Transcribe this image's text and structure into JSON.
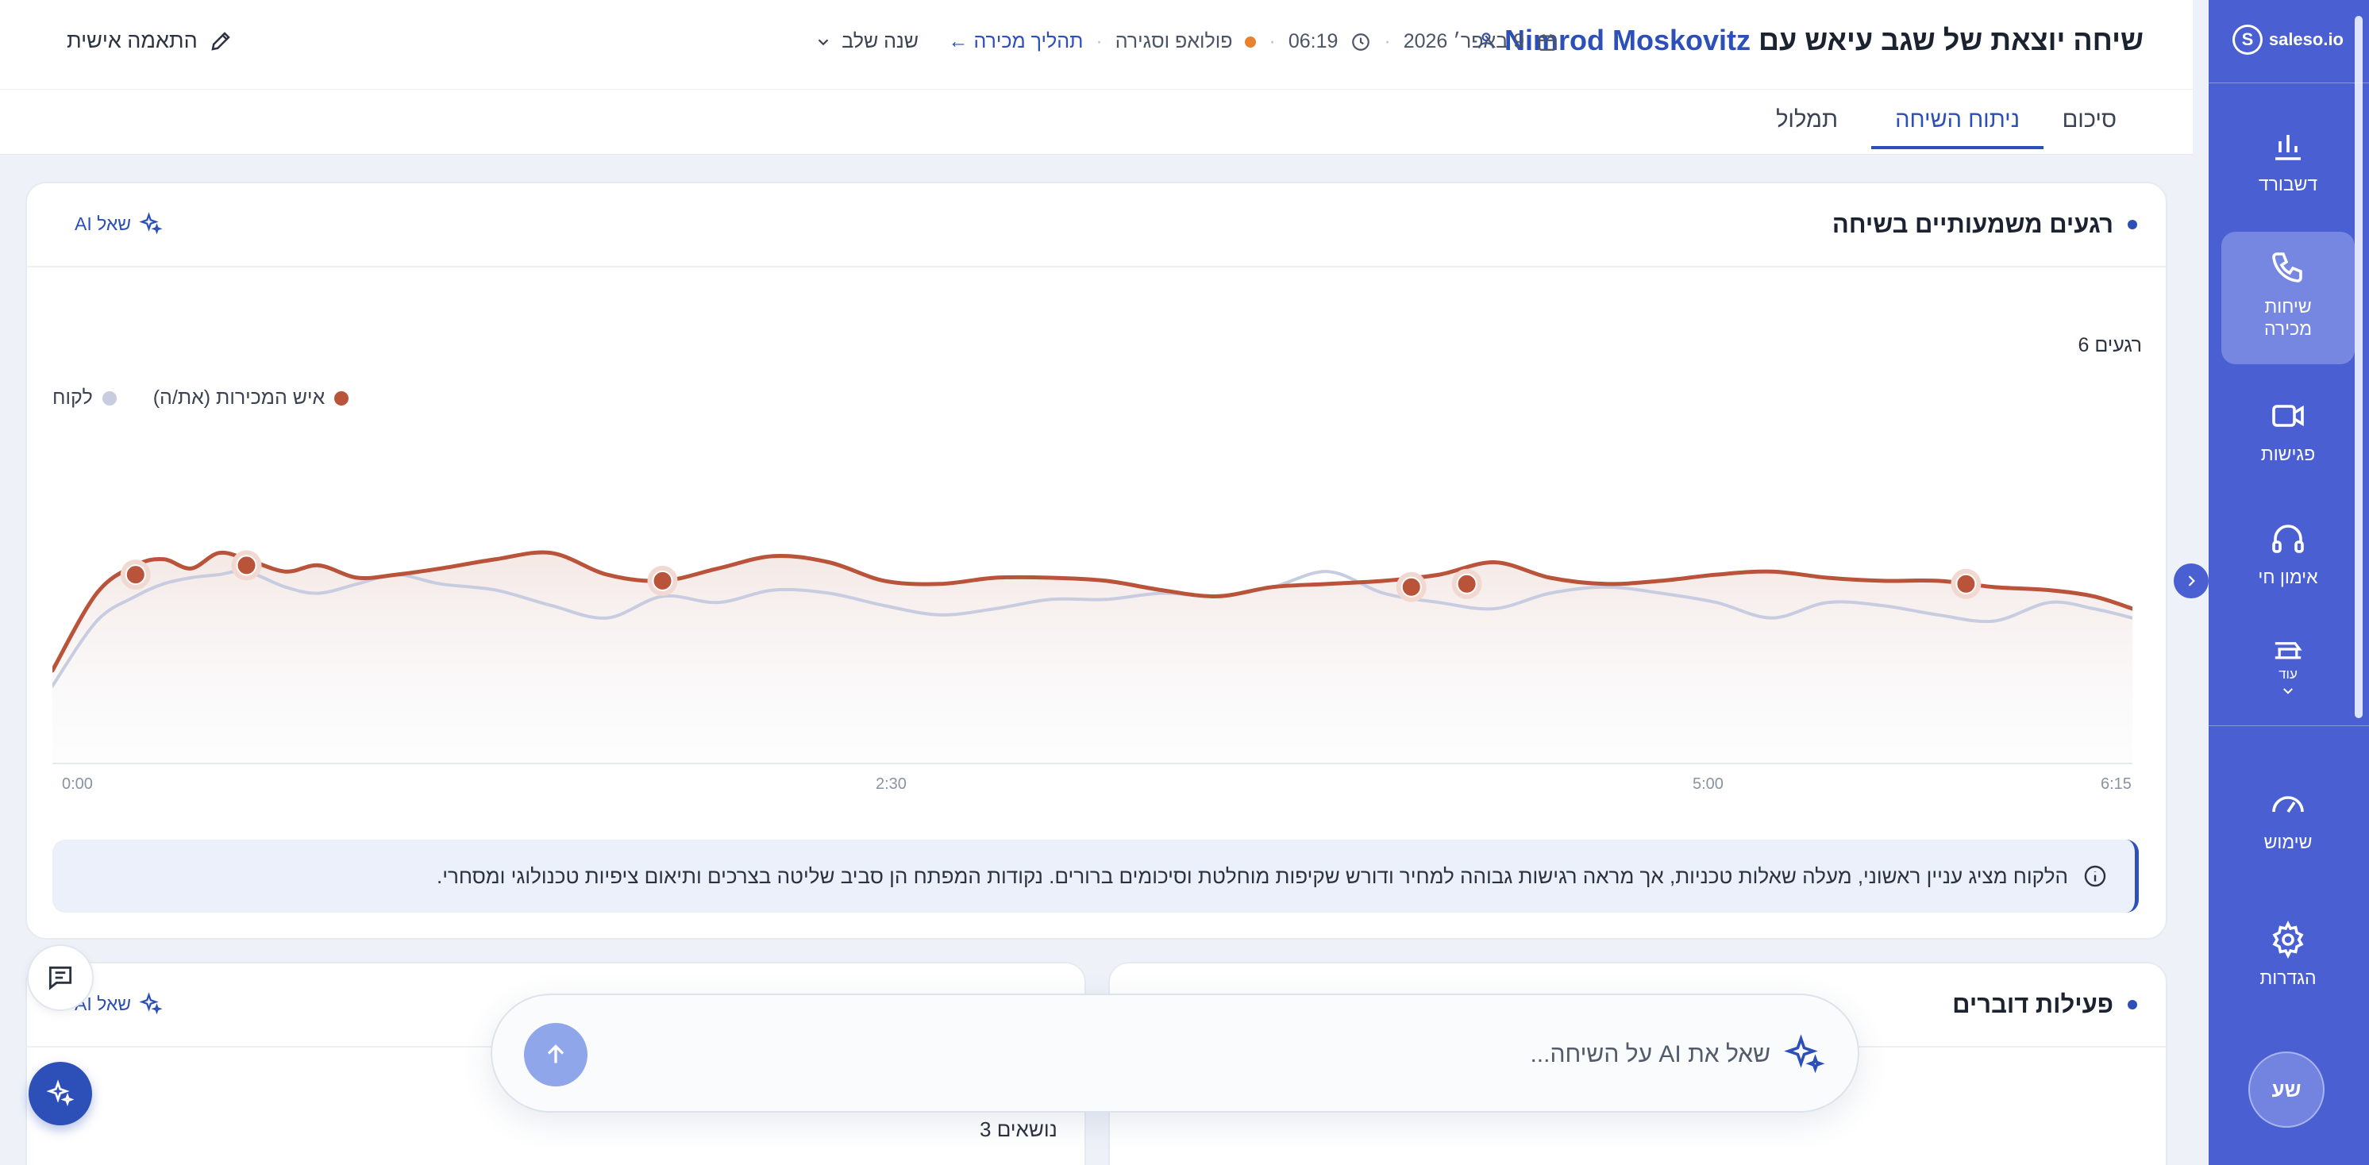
{
  "header": {
    "title_prefix": "שיחה יוצאת של שגב עיאש עם",
    "contact_name": "Nimrod Moskovitz",
    "date": "9 באפר׳ 2026",
    "duration": "06:19",
    "stage": "פולואפ וסגירה",
    "sales_process_link": "תהליך מכירה ←",
    "stage_select": "שנה שלב",
    "personalize": "התאמה אישית"
  },
  "tabs": [
    {
      "label": "סיכום"
    },
    {
      "label": "ניתוח השיחה"
    },
    {
      "label": "תמלול"
    }
  ],
  "sidebar": {
    "brand": "saleso.io",
    "items": [
      {
        "label": "דשבורד",
        "icon": "bar-chart-icon"
      },
      {
        "label": "שיחות מכירה",
        "icon": "phone-icon"
      },
      {
        "label": "פגישות",
        "icon": "video-icon"
      },
      {
        "label": "אימון חי",
        "icon": "headphones-icon"
      },
      {
        "label": "עוד",
        "icon": "more-icon"
      },
      {
        "label": "שימוש",
        "icon": "gauge-icon"
      },
      {
        "label": "הגדרות",
        "icon": "gear-icon"
      }
    ],
    "avatar_initials": "שע"
  },
  "moments_card": {
    "title": "רגעים משמעותיים בשיחה",
    "ask_ai": "שאל AI",
    "count_label": "6 רגעים",
    "legend": [
      {
        "label": "איש המכירות (את/ה)",
        "color": "#b9533a"
      },
      {
        "label": "לקוח",
        "color": "#c7cce0"
      }
    ],
    "insight": "הלקוח מציג עניין ראשוני, מעלה שאלות טכניות, אך מראה רגישות גבוהה למחיר ודורש שקיפות מוחלטת וסיכומים ברורים. נקודות המפתח הן סביב שליטה בצרכים ותיאום ציפיות טכנולוגי ומסחרי."
  },
  "chart_data": {
    "type": "line",
    "x_ticks": [
      "0:00",
      "2:30",
      "5:00",
      "6:15"
    ],
    "xlim": [
      0,
      375
    ],
    "series": [
      {
        "name": "איש המכירות (את/ה)",
        "color": "#b9533a",
        "x": [
          0,
          8,
          15,
          20,
          25,
          30,
          35,
          42,
          48,
          55,
          62,
          70,
          80,
          90,
          100,
          110,
          120,
          130,
          140,
          150,
          160,
          170,
          180,
          190,
          200,
          210,
          220,
          230,
          240,
          250,
          260,
          270,
          280,
          290,
          300,
          310,
          320,
          330,
          340,
          350,
          360,
          368,
          375
        ],
        "y": [
          0.3,
          0.55,
          0.64,
          0.66,
          0.63,
          0.68,
          0.66,
          0.62,
          0.64,
          0.6,
          0.61,
          0.63,
          0.66,
          0.68,
          0.61,
          0.59,
          0.63,
          0.67,
          0.65,
          0.59,
          0.58,
          0.6,
          0.6,
          0.59,
          0.56,
          0.54,
          0.57,
          0.58,
          0.59,
          0.61,
          0.65,
          0.6,
          0.58,
          0.59,
          0.61,
          0.62,
          0.6,
          0.59,
          0.59,
          0.57,
          0.56,
          0.54,
          0.5
        ]
      },
      {
        "name": "לקוח",
        "color": "#c7cce0",
        "x": [
          0,
          8,
          15,
          20,
          25,
          30,
          35,
          42,
          48,
          55,
          62,
          70,
          80,
          90,
          100,
          110,
          120,
          130,
          140,
          150,
          160,
          170,
          180,
          190,
          200,
          210,
          220,
          230,
          240,
          250,
          260,
          270,
          280,
          290,
          300,
          310,
          320,
          330,
          340,
          350,
          360,
          368,
          375
        ],
        "y": [
          0.25,
          0.46,
          0.54,
          0.58,
          0.6,
          0.61,
          0.62,
          0.57,
          0.55,
          0.58,
          0.61,
          0.58,
          0.56,
          0.51,
          0.47,
          0.54,
          0.52,
          0.56,
          0.55,
          0.51,
          0.48,
          0.5,
          0.53,
          0.53,
          0.55,
          0.54,
          0.57,
          0.62,
          0.55,
          0.52,
          0.5,
          0.55,
          0.57,
          0.55,
          0.52,
          0.47,
          0.52,
          0.51,
          0.48,
          0.46,
          0.52,
          0.5,
          0.47
        ]
      }
    ],
    "moments": [
      {
        "x": 15,
        "y": 0.61
      },
      {
        "x": 35,
        "y": 0.64
      },
      {
        "x": 110,
        "y": 0.59
      },
      {
        "x": 245,
        "y": 0.57
      },
      {
        "x": 255,
        "y": 0.58
      },
      {
        "x": 345,
        "y": 0.58
      }
    ]
  },
  "speakers_card": {
    "title": "פעילות דוברים"
  },
  "topics_card": {
    "ask_ai": "שאל AI",
    "count_label": "3 נושאים"
  },
  "ask_bar": {
    "placeholder": "שאל את AI על השיחה..."
  }
}
